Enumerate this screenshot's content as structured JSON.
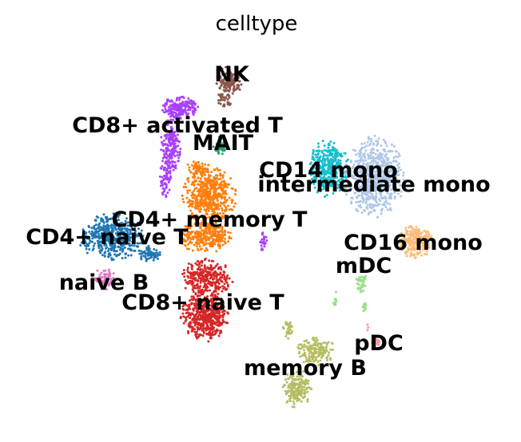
{
  "chart_data": {
    "type": "scatter",
    "title": "celltype",
    "xlabel": "",
    "ylabel": "",
    "grid": false,
    "legend": "on data",
    "clusters": [
      {
        "name": "NK",
        "color": "#8c564b"
      },
      {
        "name": "CD8+ activated T",
        "color": "#aa40fc"
      },
      {
        "name": "MAIT",
        "color": "#279e68"
      },
      {
        "name": "CD14 mono",
        "color": "#17becf"
      },
      {
        "name": "intermediate mono",
        "color": "#aec7e8"
      },
      {
        "name": "CD4+ memory T",
        "color": "#ff7f0e"
      },
      {
        "name": "CD4+ naive T",
        "color": "#1f77b4"
      },
      {
        "name": "CD16 mono",
        "color": "#ffbb78"
      },
      {
        "name": "mDC",
        "color": "#98df8a"
      },
      {
        "name": "naive B",
        "color": "#e377c2"
      },
      {
        "name": "CD8+ naive T",
        "color": "#d62728"
      },
      {
        "name": "pDC",
        "color": "#ff9896"
      },
      {
        "name": "memory B",
        "color": "#b5bd61"
      }
    ]
  }
}
